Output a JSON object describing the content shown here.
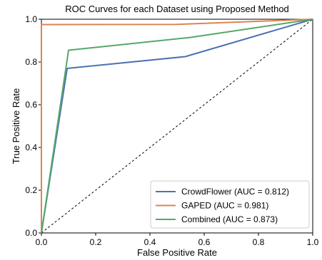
{
  "chart_data": {
    "type": "line",
    "title": "ROC Curves for each Dataset using Proposed Method",
    "xlabel": "False Positive Rate",
    "ylabel": "True Positive Rate",
    "xlim": [
      0,
      1
    ],
    "ylim": [
      0,
      1
    ],
    "xticks": [
      0.0,
      0.2,
      0.4,
      0.6,
      0.8,
      1.0
    ],
    "yticks": [
      0.0,
      0.2,
      0.4,
      0.6,
      0.8,
      1.0
    ],
    "xtick_labels": [
      "0.0",
      "0.2",
      "0.4",
      "0.6",
      "0.8",
      "1.0"
    ],
    "ytick_labels": [
      "0.0",
      "0.2",
      "0.4",
      "0.6",
      "0.8",
      "1.0"
    ],
    "grid": false,
    "legend_position": "lower-right",
    "series": [
      {
        "name": "CrowdFlower (AUC = 0.812)",
        "color": "#4c72b0",
        "x": [
          0.0,
          0.095,
          0.53,
          1.0
        ],
        "y": [
          0.0,
          0.77,
          0.825,
          1.0
        ]
      },
      {
        "name": "GAPED (AUC = 0.981)",
        "color": "#dd8452",
        "x": [
          0.0,
          0.0,
          0.5,
          1.0
        ],
        "y": [
          0.0,
          0.975,
          0.976,
          1.0
        ]
      },
      {
        "name": "Combined (AUC = 0.873)",
        "color": "#55a868",
        "x": [
          0.0,
          0.1,
          0.55,
          1.0
        ],
        "y": [
          0.0,
          0.855,
          0.915,
          1.0
        ]
      }
    ],
    "reference_line": {
      "x": [
        0,
        1
      ],
      "y": [
        0,
        1
      ],
      "color": "#000000",
      "style": "dashed"
    }
  }
}
